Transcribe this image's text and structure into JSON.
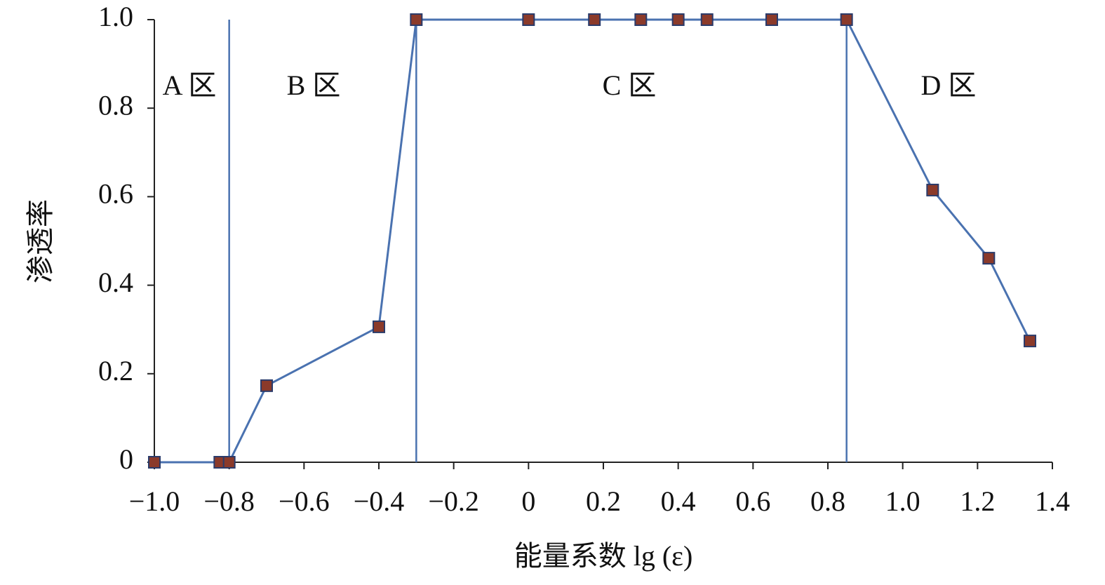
{
  "chart_data": {
    "type": "line",
    "x_label": "能量系数 lg (ε)",
    "y_label": "渗透率",
    "x": [
      -1.0,
      -0.825,
      -0.8,
      -0.7,
      -0.4,
      -0.3,
      0,
      0.176,
      0.3,
      0.4,
      0.477,
      0.65,
      0.85,
      1.08,
      1.23,
      1.34
    ],
    "values": [
      0,
      0,
      0,
      0.173,
      0.306,
      1.0,
      1.0,
      1.0,
      1.0,
      1.0,
      1.0,
      1.0,
      1.0,
      0.615,
      0.461,
      0.274
    ],
    "color": "#4a72b0",
    "marker_color": "#8b3a2a",
    "boundaries": [
      -0.8,
      -0.3,
      0.85
    ],
    "annotations": [
      "A 区",
      "B 区",
      "C 区",
      "D 区"
    ],
    "xlim": [
      -1.0,
      1.4
    ],
    "ylim": [
      0,
      1.0
    ],
    "xticks": [
      {
        "value": -1.0,
        "label": "−1.0"
      },
      {
        "value": -0.8,
        "label": "−0.8"
      },
      {
        "value": -0.6,
        "label": "−0.6"
      },
      {
        "value": -0.4,
        "label": "−0.4"
      },
      {
        "value": -0.2,
        "label": "−0.2"
      },
      0,
      0.2,
      0.4,
      0.6,
      0.8,
      {
        "value": 1.0,
        "label": "1.0"
      },
      1.2,
      1.4
    ],
    "yticks": [
      0,
      0.2,
      0.4,
      0.6,
      0.8,
      {
        "value": 1.0,
        "label": "1.0"
      }
    ]
  }
}
